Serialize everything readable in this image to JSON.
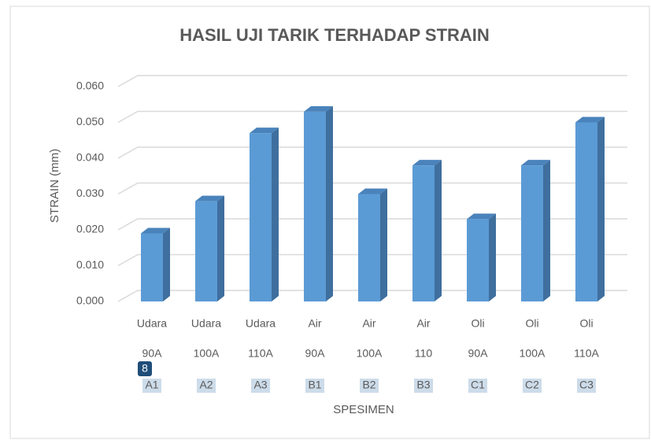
{
  "chart_data": {
    "type": "bar3d",
    "title": "HASIL UJI TARIK TERHADAP STRAIN",
    "ylabel": "STRAIN (mm)",
    "xlabel": "SPESIMEN",
    "categories": [
      [
        "Udara",
        "90A",
        "A1"
      ],
      [
        "Udara",
        "100A",
        "A2"
      ],
      [
        "Udara",
        "110A",
        "A3"
      ],
      [
        "Air",
        "90A",
        "B1"
      ],
      [
        "Air",
        "100A",
        "B2"
      ],
      [
        "Air",
        "110",
        "B3"
      ],
      [
        "Oli",
        "90A",
        "C1"
      ],
      [
        "Oli",
        "100A",
        "C2"
      ],
      [
        "Oli",
        "110A",
        "C3"
      ]
    ],
    "values": [
      0.019,
      0.028,
      0.047,
      0.053,
      0.03,
      0.038,
      0.023,
      0.038,
      0.05
    ],
    "color": "#5b9bd5",
    "ylim": [
      0,
      0.06
    ],
    "yticks": [
      {
        "value": 0,
        "label": "0.000"
      },
      {
        "value": 0.01,
        "label": "0.010"
      },
      {
        "value": 0.02,
        "label": "0.020"
      },
      {
        "value": 0.03,
        "label": "0.030"
      },
      {
        "value": 0.04,
        "label": "0.040"
      },
      {
        "value": 0.05,
        "label": "0.050"
      },
      {
        "value": 0.06,
        "label": "0.060"
      }
    ],
    "grid": true,
    "badge": "8"
  }
}
